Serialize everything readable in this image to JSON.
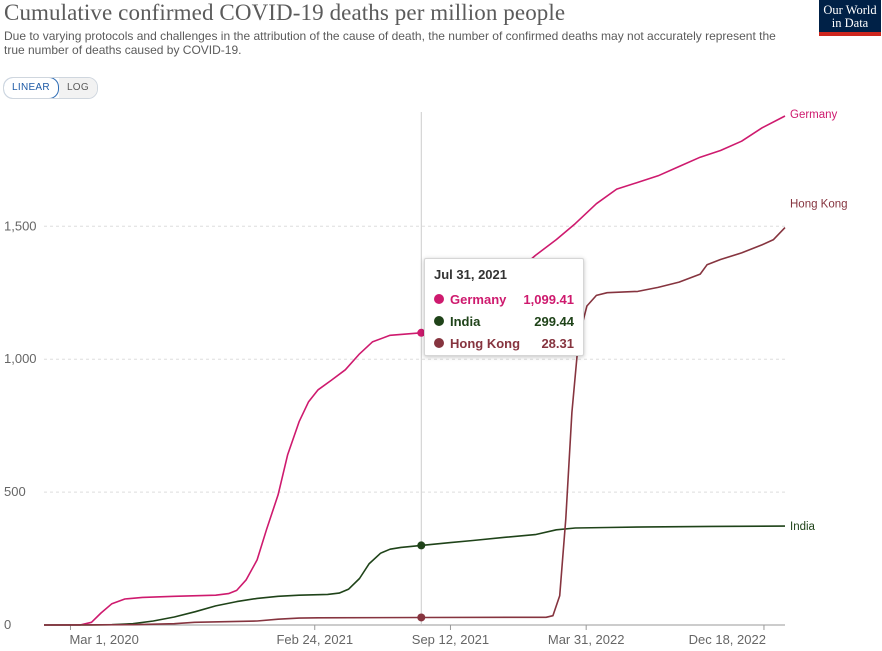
{
  "header": {
    "title": "Cumulative confirmed COVID-19 deaths per million people",
    "subtitle": "Due to varying protocols and challenges in the attribution of the cause of death, the number of confirmed deaths may not accurately represent the true number of deaths caused by COVID-19.",
    "logo_line1": "Our World",
    "logo_line2": "in Data"
  },
  "controls": {
    "linear_label": "LINEAR",
    "log_label": "LOG",
    "active": "LINEAR"
  },
  "tooltip": {
    "date": "Jul 31, 2021",
    "rows": [
      {
        "name": "Germany",
        "value": "1,099.41",
        "color": "#ce1a6e"
      },
      {
        "name": "India",
        "value": "299.44",
        "color": "#1f4319"
      },
      {
        "name": "Hong Kong",
        "value": "28.31",
        "color": "#86343f"
      }
    ]
  },
  "chart_data": {
    "type": "line",
    "title": "Cumulative confirmed COVID-19 deaths per million people",
    "xlabel": "",
    "ylabel": "",
    "x_start": "2020-01-22",
    "x_end": "2023-01-18",
    "hover_date": "2021-07-31",
    "ylim": [
      0,
      1930
    ],
    "y_ticks": [
      0,
      500,
      1000,
      1500
    ],
    "y_tick_labels": [
      "0",
      "500",
      "1,000",
      "1,500"
    ],
    "x_ticks": [
      "2020-03-01",
      "2021-02-24",
      "2021-09-12",
      "2022-03-31",
      "2022-12-18"
    ],
    "x_tick_labels": [
      "Mar 1, 2020",
      "Feb 24, 2021",
      "Sep 12, 2021",
      "Mar 31, 2022",
      "Dec 18, 2022"
    ],
    "grid": "horizontal dashed",
    "legend": "end-of-line labels",
    "series": [
      {
        "name": "Germany",
        "color": "#ce1a6e",
        "points": [
          [
            "2020-01-22",
            0
          ],
          [
            "2020-03-15",
            0
          ],
          [
            "2020-04-01",
            10
          ],
          [
            "2020-04-15",
            45
          ],
          [
            "2020-05-01",
            80
          ],
          [
            "2020-05-20",
            98
          ],
          [
            "2020-06-15",
            104
          ],
          [
            "2020-08-01",
            108
          ],
          [
            "2020-10-01",
            112
          ],
          [
            "2020-10-20",
            118
          ],
          [
            "2020-11-01",
            130
          ],
          [
            "2020-11-15",
            170
          ],
          [
            "2020-12-01",
            245
          ],
          [
            "2020-12-15",
            360
          ],
          [
            "2021-01-01",
            490
          ],
          [
            "2021-01-15",
            640
          ],
          [
            "2021-02-01",
            765
          ],
          [
            "2021-02-15",
            840
          ],
          [
            "2021-03-01",
            885
          ],
          [
            "2021-03-20",
            920
          ],
          [
            "2021-04-10",
            960
          ],
          [
            "2021-05-01",
            1020
          ],
          [
            "2021-05-20",
            1065
          ],
          [
            "2021-06-15",
            1090
          ],
          [
            "2021-07-31",
            1099.41
          ],
          [
            "2021-09-12",
            1120
          ],
          [
            "2021-10-15",
            1160
          ],
          [
            "2021-11-15",
            1230
          ],
          [
            "2021-12-15",
            1320
          ],
          [
            "2022-01-15",
            1390
          ],
          [
            "2022-02-15",
            1450
          ],
          [
            "2022-03-15",
            1510
          ],
          [
            "2022-04-15",
            1585
          ],
          [
            "2022-05-15",
            1640
          ],
          [
            "2022-06-15",
            1665
          ],
          [
            "2022-07-15",
            1690
          ],
          [
            "2022-08-15",
            1725
          ],
          [
            "2022-09-15",
            1760
          ],
          [
            "2022-10-15",
            1785
          ],
          [
            "2022-11-15",
            1820
          ],
          [
            "2022-12-15",
            1870
          ],
          [
            "2023-01-18",
            1915
          ]
        ]
      },
      {
        "name": "India",
        "color": "#1f4319",
        "points": [
          [
            "2020-01-22",
            0
          ],
          [
            "2020-04-01",
            0
          ],
          [
            "2020-05-01",
            1
          ],
          [
            "2020-06-01",
            5
          ],
          [
            "2020-07-01",
            15
          ],
          [
            "2020-08-01",
            30
          ],
          [
            "2020-09-01",
            50
          ],
          [
            "2020-10-01",
            72
          ],
          [
            "2020-11-01",
            88
          ],
          [
            "2020-12-01",
            100
          ],
          [
            "2021-01-01",
            108
          ],
          [
            "2021-02-01",
            112
          ],
          [
            "2021-03-15",
            115
          ],
          [
            "2021-04-01",
            120
          ],
          [
            "2021-04-15",
            135
          ],
          [
            "2021-05-01",
            175
          ],
          [
            "2021-05-15",
            230
          ],
          [
            "2021-06-01",
            270
          ],
          [
            "2021-06-15",
            285
          ],
          [
            "2021-07-01",
            292
          ],
          [
            "2021-07-31",
            299.44
          ],
          [
            "2021-09-12",
            310
          ],
          [
            "2021-10-15",
            318
          ],
          [
            "2021-12-01",
            330
          ],
          [
            "2022-01-15",
            340
          ],
          [
            "2022-02-15",
            358
          ],
          [
            "2022-03-15",
            365
          ],
          [
            "2022-05-01",
            367
          ],
          [
            "2022-07-01",
            369
          ],
          [
            "2022-10-01",
            371
          ],
          [
            "2023-01-18",
            372
          ]
        ]
      },
      {
        "name": "Hong Kong",
        "color": "#86343f",
        "points": [
          [
            "2020-01-22",
            0
          ],
          [
            "2020-06-01",
            1
          ],
          [
            "2020-08-01",
            5
          ],
          [
            "2020-08-31",
            10
          ],
          [
            "2020-12-01",
            15
          ],
          [
            "2021-01-01",
            22
          ],
          [
            "2021-02-01",
            26
          ],
          [
            "2021-03-01",
            27
          ],
          [
            "2021-07-31",
            28.31
          ],
          [
            "2022-01-31",
            29
          ],
          [
            "2022-02-10",
            35
          ],
          [
            "2022-02-20",
            110
          ],
          [
            "2022-03-01",
            400
          ],
          [
            "2022-03-10",
            800
          ],
          [
            "2022-03-20",
            1080
          ],
          [
            "2022-04-01",
            1200
          ],
          [
            "2022-04-15",
            1240
          ],
          [
            "2022-05-01",
            1250
          ],
          [
            "2022-06-15",
            1255
          ],
          [
            "2022-07-15",
            1270
          ],
          [
            "2022-08-15",
            1290
          ],
          [
            "2022-09-15",
            1320
          ],
          [
            "2022-09-25",
            1355
          ],
          [
            "2022-10-15",
            1375
          ],
          [
            "2022-11-15",
            1400
          ],
          [
            "2022-12-15",
            1430
          ],
          [
            "2023-01-01",
            1450
          ],
          [
            "2023-01-18",
            1495
          ]
        ]
      }
    ]
  }
}
